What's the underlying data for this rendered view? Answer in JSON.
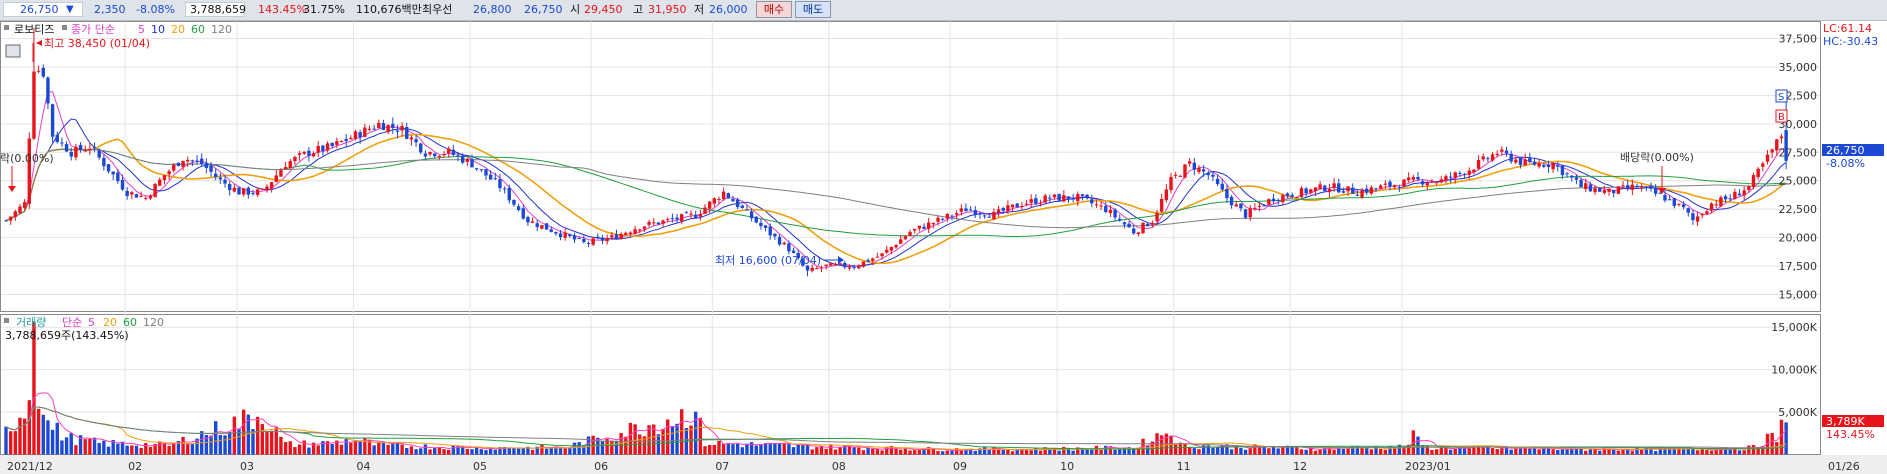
{
  "quote": {
    "price": "26,750",
    "down_mark": "▼",
    "change": "2,350",
    "change_pct": "-8.08%",
    "volume": "3,788,659",
    "volume_ratio": "143.45%",
    "turnover": "31.75%",
    "amount": "110,676백만",
    "best_ask_label": "최우선",
    "best_ask": "26,800",
    "best_bid": "26,750",
    "open_label": "시",
    "open": "29,450",
    "high_label": "고",
    "high": "31,950",
    "low_label": "저",
    "low": "26,000"
  },
  "buttons": {
    "buy": "매수",
    "sell": "매도"
  },
  "colors": {
    "up": "#e8141c",
    "down": "#1c49d4",
    "ma5": "#e040c8",
    "ma10": "#2233cc",
    "ma20": "#f0a010",
    "ma60": "#20a040",
    "ma120": "#808080",
    "vma5": "#ff40c0",
    "vma20": "#f0a010",
    "vma60": "#20a040",
    "vma120": "#808080"
  },
  "price_legend": {
    "stock_name": "로보티즈",
    "type": "종가 단순",
    "p5": "5",
    "p10": "10",
    "p20": "20",
    "p60": "60",
    "p120": "120"
  },
  "volume_legend": {
    "title": "거래량",
    "type": "단순",
    "p5": "5",
    "p20": "20",
    "p60": "60",
    "p120": "120",
    "value": "3,788,659주(143.45%)"
  },
  "annotations": {
    "high": "최고 38,450 (01/04)",
    "low": "최저 16,600 (07/04)",
    "ex_dividend": "배당락(0.00%)",
    "ex_dividend_left": "락(0.00%)",
    "s_marker": "S",
    "b_marker": "B"
  },
  "right_info": {
    "lc": "LC:61.14",
    "hc": "HC:-30.43",
    "last_price": "26,750",
    "last_pct": "-8.08%",
    "last_volume": "3,789K",
    "last_volume_pct": "143.45%"
  },
  "chart_data": {
    "type": "candlestick",
    "price_axis": {
      "ylim": [
        13500,
        39000
      ],
      "ticks": [
        15000,
        17500,
        20000,
        22500,
        25000,
        27500,
        30000,
        32500,
        35000,
        37500
      ],
      "tick_labels": [
        "15,000",
        "17,500",
        "20,000",
        "22,500",
        "25,000",
        "27,500",
        "30,000",
        "32,500",
        "35,000",
        "37,500"
      ]
    },
    "volume_axis": {
      "ylim": [
        0,
        16500
      ],
      "ticks": [
        5000,
        10000,
        15000
      ],
      "tick_labels": [
        "5,000K",
        "10,000K",
        "15,000K"
      ]
    },
    "month_labels": [
      "2021/12",
      "02",
      "03",
      "04",
      "05",
      "06",
      "07",
      "08",
      "09",
      "10",
      "11",
      "12",
      "2023/01",
      "01/26"
    ],
    "anchors": [
      [
        0,
        21500
      ],
      [
        4,
        23000
      ],
      [
        6,
        35000
      ],
      [
        8,
        34500
      ],
      [
        10,
        29000
      ],
      [
        14,
        27500
      ],
      [
        18,
        28000
      ],
      [
        22,
        26000
      ],
      [
        26,
        24000
      ],
      [
        30,
        23500
      ],
      [
        34,
        25500
      ],
      [
        38,
        27000
      ],
      [
        42,
        26500
      ],
      [
        46,
        25000
      ],
      [
        50,
        24000
      ],
      [
        55,
        24000
      ],
      [
        60,
        26500
      ],
      [
        65,
        27500
      ],
      [
        70,
        28000
      ],
      [
        75,
        29000
      ],
      [
        80,
        30000
      ],
      [
        85,
        29500
      ],
      [
        90,
        27500
      ],
      [
        95,
        27500
      ],
      [
        100,
        26500
      ],
      [
        106,
        24500
      ],
      [
        112,
        21500
      ],
      [
        118,
        20500
      ],
      [
        124,
        19500
      ],
      [
        130,
        20000
      ],
      [
        136,
        21000
      ],
      [
        142,
        21500
      ],
      [
        148,
        22000
      ],
      [
        154,
        24000
      ],
      [
        158,
        22500
      ],
      [
        162,
        21000
      ],
      [
        168,
        19000
      ],
      [
        172,
        17000
      ],
      [
        176,
        17500
      ],
      [
        182,
        17500
      ],
      [
        188,
        18500
      ],
      [
        194,
        20500
      ],
      [
        200,
        21500
      ],
      [
        206,
        22500
      ],
      [
        212,
        22000
      ],
      [
        218,
        23000
      ],
      [
        224,
        23500
      ],
      [
        230,
        23500
      ],
      [
        236,
        22500
      ],
      [
        242,
        20500
      ],
      [
        246,
        21500
      ],
      [
        250,
        25000
      ],
      [
        254,
        26500
      ],
      [
        258,
        25500
      ],
      [
        262,
        23500
      ],
      [
        266,
        22000
      ],
      [
        272,
        23500
      ],
      [
        278,
        24000
      ],
      [
        284,
        24500
      ],
      [
        290,
        24000
      ],
      [
        296,
        24500
      ],
      [
        302,
        25000
      ],
      [
        308,
        25000
      ],
      [
        314,
        26000
      ],
      [
        320,
        27500
      ],
      [
        326,
        26500
      ],
      [
        332,
        26500
      ],
      [
        338,
        24500
      ],
      [
        344,
        24000
      ],
      [
        350,
        24500
      ],
      [
        356,
        23500
      ],
      [
        360,
        22500
      ],
      [
        362,
        21500
      ],
      [
        366,
        23000
      ],
      [
        370,
        23500
      ],
      [
        374,
        24500
      ],
      [
        378,
        27000
      ],
      [
        381,
        29000
      ],
      [
        382,
        26750
      ]
    ],
    "volume_anchors": [
      [
        0,
        3000
      ],
      [
        3,
        5200
      ],
      [
        5,
        7500
      ],
      [
        6,
        15600
      ],
      [
        7,
        9000
      ],
      [
        9,
        4000
      ],
      [
        13,
        2200
      ],
      [
        20,
        1500
      ],
      [
        35,
        1200
      ],
      [
        55,
        5300
      ],
      [
        60,
        1300
      ],
      [
        70,
        1500
      ],
      [
        75,
        2000
      ],
      [
        80,
        1200
      ],
      [
        100,
        900
      ],
      [
        120,
        900
      ],
      [
        148,
        5600
      ],
      [
        150,
        1500
      ],
      [
        170,
        1100
      ],
      [
        200,
        700
      ],
      [
        220,
        700
      ],
      [
        242,
        900
      ],
      [
        250,
        3300
      ],
      [
        252,
        1200
      ],
      [
        280,
        800
      ],
      [
        300,
        1000
      ],
      [
        302,
        2300
      ],
      [
        305,
        900
      ],
      [
        340,
        700
      ],
      [
        360,
        700
      ],
      [
        375,
        900
      ],
      [
        378,
        2200
      ],
      [
        380,
        2000
      ],
      [
        381,
        3500
      ],
      [
        382,
        3789
      ]
    ],
    "moving_averages": {
      "price": [
        "5",
        "10",
        "20",
        "60",
        "120"
      ],
      "volume": [
        "5",
        "20",
        "60",
        "120"
      ]
    },
    "last": {
      "close": 26750,
      "open": 29450,
      "high": 31950,
      "low": 26000,
      "volume": 3788659,
      "change": -2350,
      "change_pct": -8.08
    },
    "extremes": {
      "high": {
        "value": 38450,
        "date": "01/04"
      },
      "low": {
        "value": 16600,
        "date": "07/04"
      }
    },
    "grid": true
  }
}
